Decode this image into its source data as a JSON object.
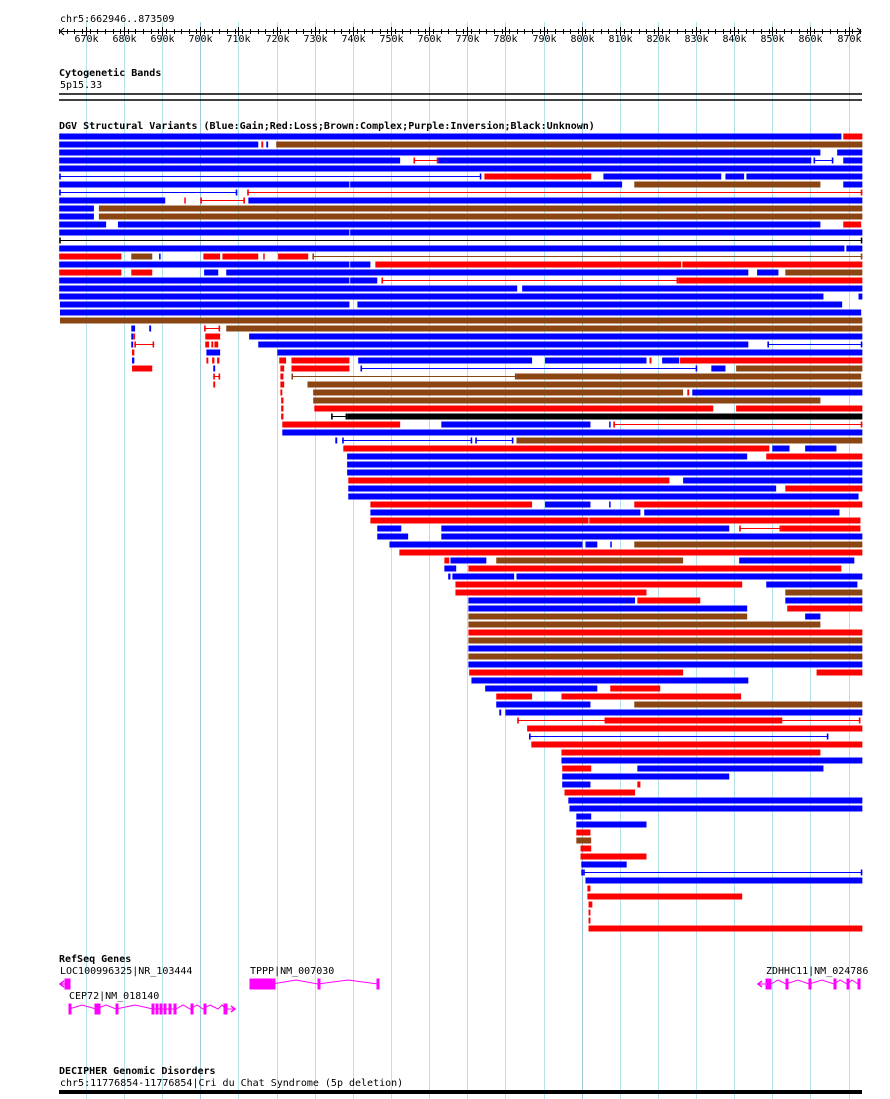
{
  "view": {
    "chrom": "chr5",
    "start_kb": 662.946,
    "end_kb": 873.509,
    "location_label": "chr5:662946..873509"
  },
  "ruler": {
    "ticks": [
      {
        "kb": 670,
        "label": "670k"
      },
      {
        "kb": 680,
        "label": "680k"
      },
      {
        "kb": 690,
        "label": "690k"
      },
      {
        "kb": 700,
        "label": "700k"
      },
      {
        "kb": 710,
        "label": "710k"
      },
      {
        "kb": 720,
        "label": "720k"
      },
      {
        "kb": 730,
        "label": "730k"
      },
      {
        "kb": 740,
        "label": "740k"
      },
      {
        "kb": 750,
        "label": "750k"
      },
      {
        "kb": 760,
        "label": "760k"
      },
      {
        "kb": 770,
        "label": "770k"
      },
      {
        "kb": 780,
        "label": "780k"
      },
      {
        "kb": 790,
        "label": "790k"
      },
      {
        "kb": 800,
        "label": "800k"
      },
      {
        "kb": 810,
        "label": "810k"
      },
      {
        "kb": 820,
        "label": "820k"
      },
      {
        "kb": 830,
        "label": "830k"
      },
      {
        "kb": 840,
        "label": "840k"
      },
      {
        "kb": 850,
        "label": "850k"
      },
      {
        "kb": 860,
        "label": "860k"
      },
      {
        "kb": 870,
        "label": "870k"
      }
    ]
  },
  "colors": {
    "B": "#0000ff",
    "R": "#ff0000",
    "N": "#8b4513",
    "K": "#000000",
    "gene": "#ff00ff",
    "grid": "#b4e4ea"
  },
  "tracks": {
    "cytoband": {
      "title": "Cytogenetic Bands",
      "band": "5p15.33"
    },
    "dgv": {
      "title": "DGV Structural Variants (Blue:Gain;Red:Loss;Brown:Complex;Purple:Inversion;Black:Unknown)"
    },
    "refseq": {
      "title": "RefSeq Genes",
      "genes": [
        {
          "label": "LOC100996325|NR_103444"
        },
        {
          "label": "TPPP|NM_007030"
        },
        {
          "label": "CEP72|NM_018140"
        },
        {
          "label": "ZDHHC11|NM_024786"
        }
      ]
    },
    "decipher": {
      "title": "DECIPHER Genomic Disorders",
      "item": "chr5:11776854-11776854|Cri du Chat Syndrome (5p deletion)"
    }
  },
  "dgv_rows": [
    [
      [
        663,
        868.1,
        "B"
      ],
      [
        868.6,
        873.6,
        "R"
      ]
    ],
    [
      [
        663,
        715.2,
        "B"
      ],
      [
        716,
        716.5,
        "R"
      ],
      [
        717.3,
        717.8,
        "B"
      ],
      [
        719.9,
        873.6,
        "N"
      ]
    ],
    [
      [
        663,
        862.6,
        "B"
      ],
      [
        867,
        873.6,
        "B"
      ]
    ],
    [
      [
        663,
        752.4,
        "B"
      ],
      [
        755.9,
        762.4,
        "R",
        "l"
      ],
      [
        762.4,
        860.2,
        "B"
      ],
      [
        860.8,
        866,
        "B",
        "l"
      ],
      [
        868.6,
        873.6,
        "B"
      ]
    ],
    [
      [
        663,
        873.6,
        "B"
      ]
    ],
    [
      [
        663,
        773.7,
        "B",
        "l"
      ],
      [
        774.5,
        802.5,
        "R"
      ],
      [
        805.7,
        836.6,
        "B"
      ],
      [
        837.7,
        842.6,
        "B"
      ],
      [
        843.2,
        873.6,
        "B"
      ]
    ],
    [
      [
        663,
        739.1,
        "B"
      ],
      [
        739.3,
        810.6,
        "B"
      ],
      [
        813.8,
        862.6,
        "N"
      ],
      [
        868.6,
        873.6,
        "B"
      ]
    ],
    [
      [
        663,
        709.7,
        "B",
        "l"
      ],
      [
        712.3,
        873.6,
        "R",
        "l"
      ]
    ],
    [
      [
        663,
        690.8,
        "B"
      ],
      [
        695.8,
        696,
        "R"
      ],
      [
        700,
        711.7,
        "R",
        "l"
      ],
      [
        712.6,
        873.6,
        "B"
      ]
    ],
    [
      [
        663,
        672.1,
        "B"
      ],
      [
        673.4,
        873.6,
        "N"
      ]
    ],
    [
      [
        663,
        672.1,
        "B"
      ],
      [
        673.4,
        873.6,
        "N"
      ]
    ],
    [
      [
        663,
        675.3,
        "B"
      ],
      [
        678.4,
        862.6,
        "B"
      ],
      [
        868.6,
        873.3,
        "R"
      ]
    ],
    [
      [
        663,
        739.1,
        "B"
      ],
      [
        739.3,
        873.6,
        "B"
      ]
    ],
    [
      [
        663,
        873.6,
        "K",
        "l"
      ]
    ],
    [
      [
        663,
        868.9,
        "B"
      ],
      [
        869.4,
        873.6,
        "B"
      ]
    ],
    [
      [
        663,
        679.3,
        "R"
      ],
      [
        681.9,
        687.4,
        "N"
      ],
      [
        689.2,
        689.5,
        "B"
      ],
      [
        700.8,
        705.2,
        "R"
      ],
      [
        705.8,
        715.2,
        "R"
      ],
      [
        716.5,
        716.8,
        "R"
      ],
      [
        720.4,
        728.3,
        "R"
      ],
      [
        729.4,
        873.6,
        "N",
        "l"
      ]
    ],
    [
      [
        663,
        739.1,
        "B"
      ],
      [
        739.3,
        744.6,
        "B"
      ],
      [
        745.9,
        826.1,
        "R"
      ],
      [
        826.4,
        873.6,
        "R"
      ]
    ],
    [
      [
        663,
        679.3,
        "R"
      ],
      [
        681.9,
        687.4,
        "R"
      ],
      [
        701,
        704.7,
        "B"
      ],
      [
        706.8,
        843.7,
        "B"
      ],
      [
        846,
        851.6,
        "B"
      ],
      [
        853.4,
        873.6,
        "N"
      ]
    ],
    [
      [
        663,
        739.1,
        "B"
      ],
      [
        739.3,
        746.4,
        "B"
      ],
      [
        747.5,
        825.3,
        "R",
        "l"
      ],
      [
        825.3,
        873.6,
        "R"
      ]
    ],
    [
      [
        663,
        783.1,
        "B"
      ],
      [
        784.4,
        873.6,
        "B"
      ]
    ],
    [
      [
        663,
        863.4,
        "B"
      ],
      [
        872.6,
        873.6,
        "B"
      ]
    ],
    [
      [
        663.2,
        739.1,
        "B"
      ],
      [
        741.2,
        868.3,
        "B"
      ]
    ],
    [
      [
        663.2,
        873.3,
        "B"
      ]
    ],
    [
      [
        663.2,
        873.6,
        "N"
      ]
    ],
    [
      [
        681.9,
        682.9,
        "B"
      ],
      [
        686.6,
        687.1,
        "B"
      ],
      [
        701,
        705.2,
        "R",
        "l"
      ],
      [
        706.8,
        873.6,
        "N"
      ]
    ],
    [
      [
        681.9,
        682.4,
        "B"
      ],
      [
        682.4,
        682.9,
        "R"
      ],
      [
        701.3,
        705.2,
        "R"
      ],
      [
        712.8,
        873.6,
        "B"
      ]
    ],
    [
      [
        681.9,
        682.4,
        "B"
      ],
      [
        682.7,
        687.9,
        "R",
        "l"
      ],
      [
        701.3,
        702.3,
        "R"
      ],
      [
        702.9,
        703.4,
        "R"
      ],
      [
        703.7,
        704.7,
        "R"
      ],
      [
        715.2,
        843.7,
        "B"
      ],
      [
        848.7,
        873.6,
        "B",
        "l"
      ]
    ],
    [
      [
        682.1,
        682.7,
        "R"
      ],
      [
        701.6,
        705.2,
        "B"
      ],
      [
        720.2,
        873.6,
        "B"
      ]
    ],
    [
      [
        682.1,
        682.7,
        "B"
      ],
      [
        701.6,
        702.1,
        "R"
      ],
      [
        703.1,
        703.7,
        "R"
      ],
      [
        704.4,
        705,
        "R"
      ],
      [
        720.7,
        722.5,
        "R"
      ],
      [
        723.9,
        739.1,
        "R"
      ],
      [
        741.4,
        787,
        "B"
      ],
      [
        790.4,
        817,
        "B"
      ],
      [
        817.8,
        818.3,
        "R"
      ],
      [
        821.1,
        825.6,
        "B"
      ],
      [
        825.8,
        873.6,
        "R"
      ]
    ],
    [
      [
        682.1,
        687.4,
        "R"
      ],
      [
        703.4,
        703.9,
        "B"
      ],
      [
        721,
        722,
        "R"
      ],
      [
        723.9,
        739.1,
        "R"
      ],
      [
        742,
        830.3,
        "B",
        "l"
      ],
      [
        834,
        837.7,
        "B"
      ],
      [
        840.5,
        873.6,
        "N"
      ]
    ],
    [
      [
        703.4,
        705.2,
        "R",
        "l"
      ],
      [
        721,
        721.8,
        "R"
      ],
      [
        723.9,
        782.9,
        "N",
        "l"
      ],
      [
        782.9,
        873.3,
        "N"
      ]
    ],
    [
      [
        703.4,
        703.9,
        "R"
      ],
      [
        721,
        722,
        "R"
      ],
      [
        728.1,
        873.6,
        "N"
      ]
    ],
    [
      [
        721,
        721.5,
        "R"
      ],
      [
        729.6,
        826.6,
        "N"
      ],
      [
        827.7,
        828.2,
        "R"
      ],
      [
        829,
        873.6,
        "B"
      ]
    ],
    [
      [
        721.2,
        721.8,
        "R"
      ],
      [
        729.6,
        862.6,
        "N"
      ]
    ],
    [
      [
        721.2,
        721.8,
        "R"
      ],
      [
        729.9,
        834.5,
        "R"
      ],
      [
        840.5,
        873.6,
        "R"
      ]
    ],
    [
      [
        721.2,
        721.8,
        "R"
      ],
      [
        734.3,
        738.5,
        "K",
        "l"
      ],
      [
        738.5,
        873.6,
        "K"
      ]
    ],
    [
      [
        721.5,
        752.4,
        "R"
      ],
      [
        763.2,
        802.3,
        "B"
      ],
      [
        807.2,
        807.5,
        "B"
      ],
      [
        808.3,
        873.6,
        "R",
        "l"
      ]
    ],
    [
      [
        721.5,
        873.6,
        "B"
      ]
    ],
    [
      [
        735.4,
        735.9,
        "B"
      ],
      [
        737.2,
        771.3,
        "B",
        "l"
      ],
      [
        772.1,
        782.1,
        "B",
        "l"
      ],
      [
        782.9,
        873.6,
        "N"
      ]
    ],
    [
      [
        737.5,
        849.2,
        "R"
      ],
      [
        850,
        854.5,
        "B"
      ],
      [
        858.6,
        866.8,
        "B"
      ]
    ],
    [
      [
        738.5,
        843.4,
        "B"
      ],
      [
        848.4,
        873.6,
        "R"
      ]
    ],
    [
      [
        738.5,
        873.6,
        "B"
      ]
    ],
    [
      [
        738.5,
        873.6,
        "B"
      ]
    ],
    [
      [
        738.8,
        823,
        "R"
      ],
      [
        826.6,
        873.6,
        "B"
      ]
    ],
    [
      [
        738.8,
        851,
        "B"
      ],
      [
        853.4,
        873.6,
        "R"
      ]
    ],
    [
      [
        738.8,
        872.6,
        "B"
      ]
    ],
    [
      [
        744.6,
        787,
        "R"
      ],
      [
        790.4,
        802.3,
        "B"
      ],
      [
        807.2,
        807.5,
        "B"
      ],
      [
        813.8,
        873.6,
        "R"
      ]
    ],
    [
      [
        744.6,
        815.4,
        "B"
      ],
      [
        816.4,
        867.6,
        "B"
      ]
    ],
    [
      [
        744.6,
        801.8,
        "R"
      ],
      [
        802,
        873.1,
        "R"
      ]
    ],
    [
      [
        746.4,
        752.7,
        "B"
      ],
      [
        763.2,
        838.7,
        "B"
      ],
      [
        841.3,
        852.3,
        "R",
        "l"
      ],
      [
        852.3,
        873.1,
        "R"
      ]
    ],
    [
      [
        746.4,
        754.5,
        "B"
      ],
      [
        763.2,
        873.6,
        "B"
      ]
    ],
    [
      [
        749.6,
        800.2,
        "B"
      ],
      [
        801,
        804.1,
        "B"
      ],
      [
        807.5,
        807.8,
        "B"
      ],
      [
        813.8,
        873.6,
        "N"
      ]
    ],
    [
      [
        752.2,
        873.6,
        "R"
      ]
    ],
    [
      [
        764,
        765.3,
        "R"
      ],
      [
        765.6,
        775,
        "B"
      ],
      [
        777.6,
        826.6,
        "N"
      ],
      [
        841.3,
        871.5,
        "B"
      ]
    ],
    [
      [
        764,
        767.1,
        "B"
      ],
      [
        770.3,
        868.1,
        "R"
      ]
    ],
    [
      [
        765,
        765.6,
        "B"
      ],
      [
        766.1,
        782.3,
        "B"
      ],
      [
        782.9,
        873.6,
        "B"
      ]
    ],
    [
      [
        766.9,
        842.1,
        "R"
      ],
      [
        848.4,
        872.3,
        "B"
      ]
    ],
    [
      [
        766.9,
        817,
        "R"
      ],
      [
        853.4,
        873.6,
        "N"
      ]
    ],
    [
      [
        770.3,
        814,
        "B"
      ],
      [
        814.6,
        831.1,
        "R"
      ],
      [
        853.4,
        873.6,
        "B"
      ]
    ],
    [
      [
        770.3,
        843.4,
        "B"
      ],
      [
        853.9,
        873.6,
        "R"
      ]
    ],
    [
      [
        770.3,
        843.4,
        "N"
      ],
      [
        858.6,
        862.6,
        "B"
      ]
    ],
    [
      [
        770.3,
        862.6,
        "N"
      ]
    ],
    [
      [
        770.3,
        873.6,
        "R"
      ]
    ],
    [
      [
        770.3,
        873.6,
        "N"
      ]
    ],
    [
      [
        770.3,
        873.6,
        "B"
      ]
    ],
    [
      [
        770.3,
        873.6,
        "N"
      ]
    ],
    [
      [
        770.3,
        873.6,
        "B"
      ]
    ],
    [
      [
        770.5,
        826.6,
        "R"
      ],
      [
        861.6,
        873.6,
        "R"
      ]
    ],
    [
      [
        771.1,
        843.7,
        "B"
      ]
    ],
    [
      [
        774.7,
        804.1,
        "B"
      ],
      [
        807.5,
        820.6,
        "R"
      ]
    ],
    [
      [
        777.6,
        787,
        "R"
      ],
      [
        794.7,
        841.8,
        "R"
      ]
    ],
    [
      [
        777.6,
        802.3,
        "B"
      ],
      [
        813.8,
        873.6,
        "N"
      ]
    ],
    [
      [
        778.4,
        778.9,
        "B"
      ],
      [
        780,
        873.6,
        "B"
      ]
    ],
    [
      [
        783.1,
        873.1,
        "R",
        "l"
      ],
      [
        806,
        852.6,
        "R"
      ]
    ],
    [
      [
        785.7,
        873.6,
        "R"
      ]
    ],
    [
      [
        786.2,
        864.7,
        "B",
        "l"
      ]
    ],
    [
      [
        786.8,
        873.6,
        "R"
      ]
    ],
    [
      [
        794.7,
        862.6,
        "R"
      ]
    ],
    [
      [
        794.7,
        873.6,
        "B"
      ]
    ],
    [
      [
        794.9,
        802.5,
        "R"
      ],
      [
        814.6,
        863.4,
        "B"
      ]
    ],
    [
      [
        794.9,
        838.7,
        "B"
      ]
    ],
    [
      [
        794.9,
        802.3,
        "B"
      ],
      [
        814.6,
        815.4,
        "R"
      ]
    ],
    [
      [
        795.5,
        814,
        "R"
      ]
    ],
    [
      [
        796.5,
        873.6,
        "B"
      ]
    ],
    [
      [
        796.8,
        873.6,
        "B"
      ]
    ],
    [
      [
        798.6,
        802.5,
        "B"
      ]
    ],
    [
      [
        798.6,
        817,
        "B"
      ]
    ],
    [
      [
        798.6,
        802.3,
        "R"
      ]
    ],
    [
      [
        798.6,
        802.5,
        "N"
      ]
    ],
    [
      [
        799.7,
        802.5,
        "R"
      ]
    ],
    [
      [
        799.7,
        817,
        "R"
      ]
    ],
    [
      [
        799.9,
        811.8,
        "B"
      ]
    ],
    [
      [
        799.9,
        800.4,
        "B"
      ],
      [
        800.4,
        873.6,
        "B",
        "l"
      ]
    ],
    [
      [
        801,
        873.6,
        "B"
      ]
    ],
    [
      [
        801.5,
        802.3,
        "R"
      ]
    ],
    [
      [
        801.5,
        842.1,
        "R"
      ]
    ],
    [
      [
        801.8,
        802.8,
        "R"
      ]
    ],
    [
      [
        801.8,
        802.3,
        "R"
      ]
    ],
    [
      [
        801.8,
        802.3,
        "R"
      ]
    ],
    [
      [
        801.8,
        873.6,
        "R"
      ]
    ]
  ]
}
